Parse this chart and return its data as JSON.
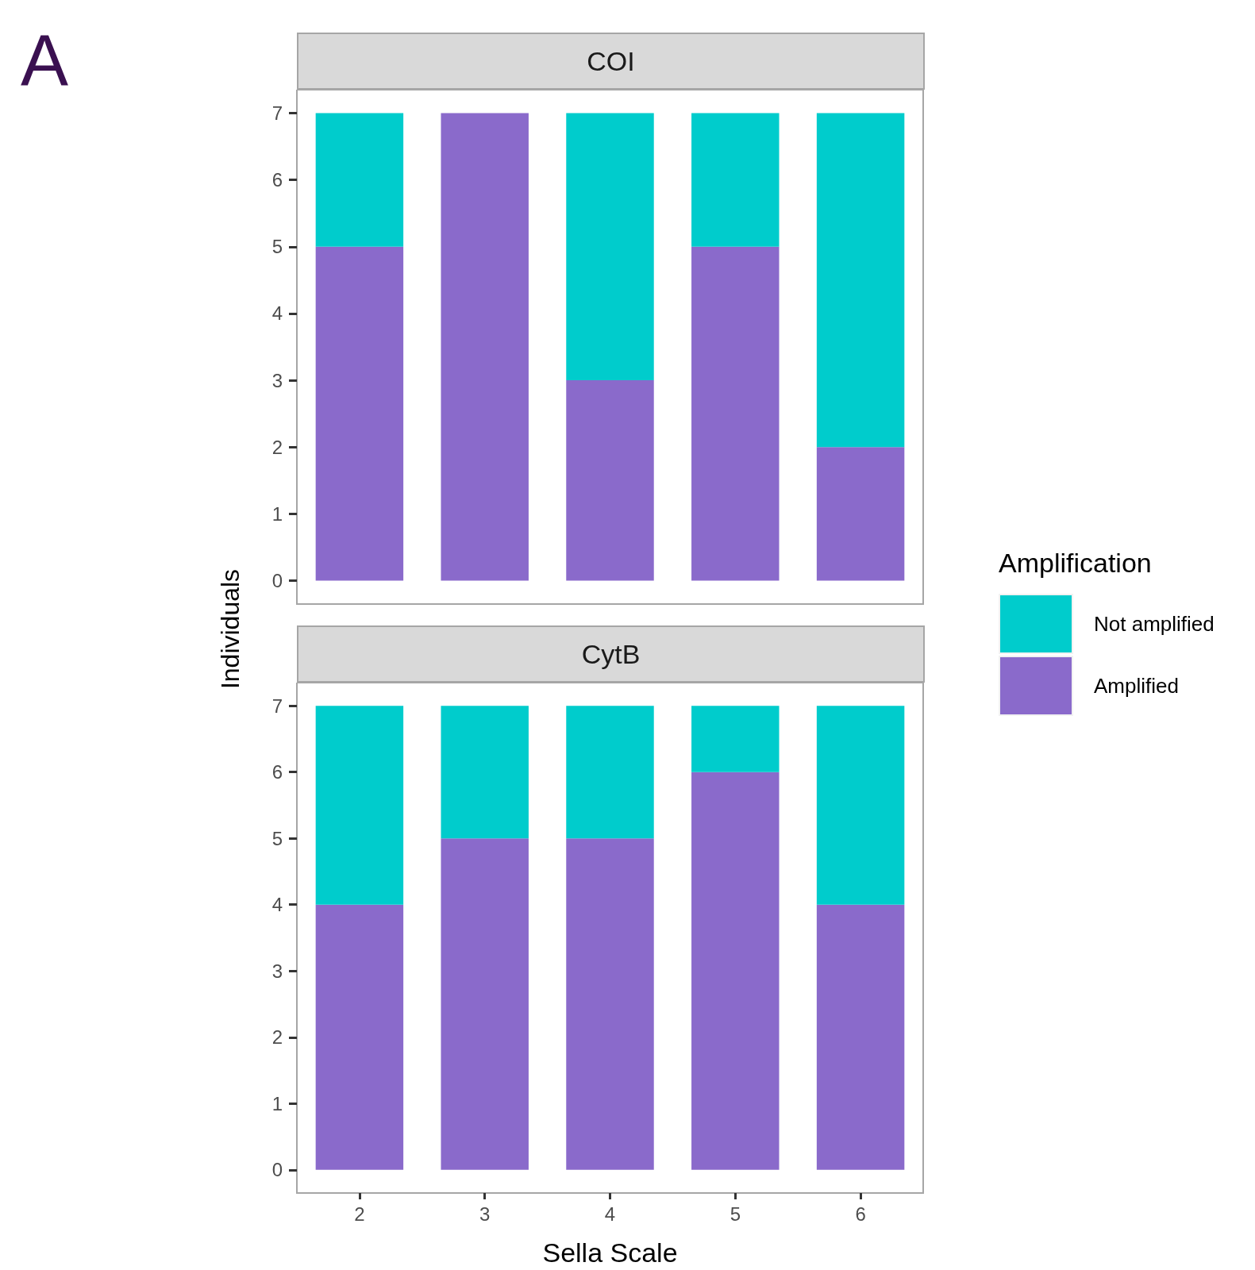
{
  "chart_data": [
    {
      "type": "bar",
      "title": "COI",
      "ylabel": "Individuals",
      "annotations": [
        "A"
      ],
      "categories": [
        "2",
        "3",
        "4",
        "5",
        "6"
      ],
      "stacked": true,
      "legend": "right",
      "legend_title": "Amplification",
      "grid": false,
      "tick_labels": "y",
      "ylim": [
        -0.35,
        7.35
      ],
      "yticks": [
        0,
        1,
        2,
        3,
        4,
        5,
        6,
        7
      ],
      "series": [
        {
          "name": "Amplified",
          "color": "#8a6acb",
          "values": [
            5,
            7,
            3,
            5,
            2
          ]
        },
        {
          "name": "Not amplified",
          "color": "#00cccc",
          "values": [
            2,
            0,
            4,
            2,
            5
          ]
        }
      ]
    },
    {
      "type": "bar",
      "title": "CytB",
      "xlabel": "Sella Scale",
      "categories": [
        "2",
        "3",
        "4",
        "5",
        "6"
      ],
      "stacked": true,
      "grid": false,
      "ylim": [
        -0.35,
        7.35
      ],
      "yticks": [
        0,
        1,
        2,
        3,
        4,
        5,
        6,
        7
      ],
      "series": [
        {
          "color": "#8a6acb",
          "values": [
            4,
            5,
            5,
            6,
            4
          ]
        },
        {
          "color": "#00cccc",
          "values": [
            3,
            2,
            2,
            1,
            3
          ]
        }
      ]
    }
  ]
}
